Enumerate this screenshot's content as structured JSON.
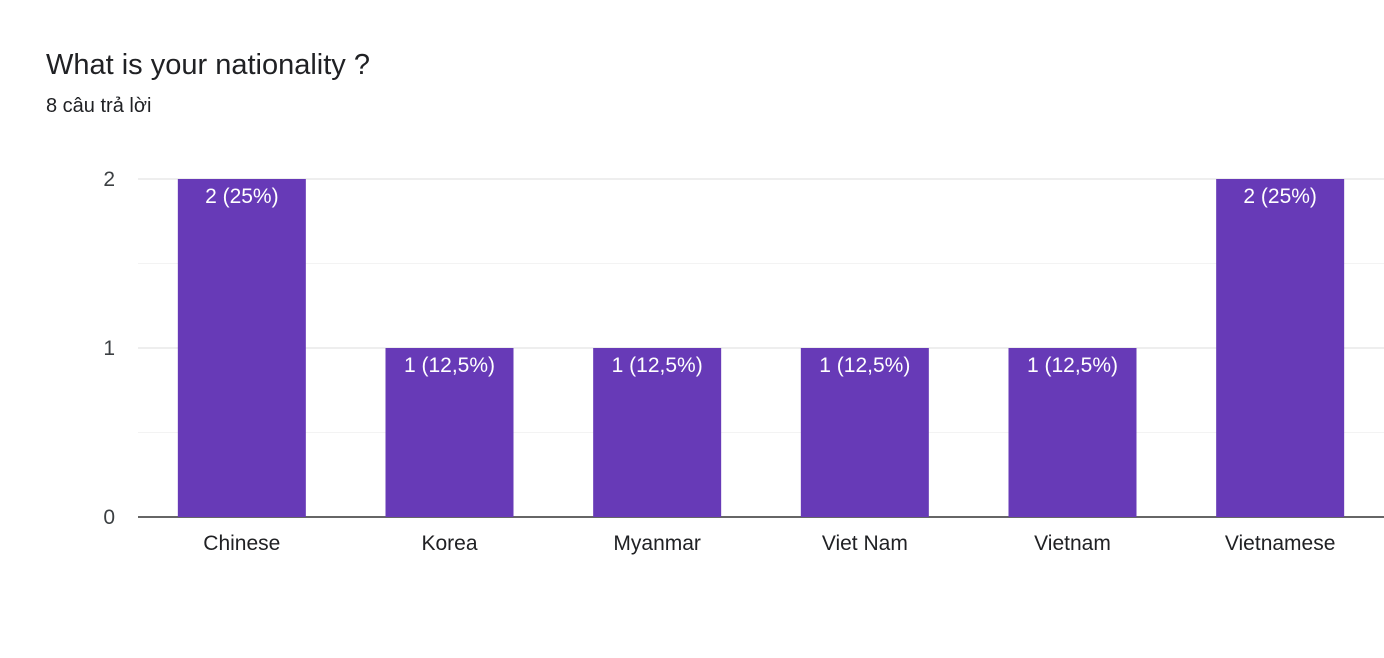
{
  "question": {
    "title": "What is your nationality ?",
    "response_count": "8 câu trả lời"
  },
  "colors": {
    "bar": "#673ab7",
    "gridline": "#e8e8e8",
    "minor_gridline": "#f3f3f3",
    "baseline": "#333333"
  },
  "chart_data": {
    "type": "bar",
    "title": "What is your nationality ?",
    "subtitle": "8 câu trả lời",
    "xlabel": "",
    "ylabel": "",
    "categories": [
      "Chinese",
      "Korea",
      "Myanmar",
      "Viet Nam",
      "Vietnam",
      "Vietnamese"
    ],
    "values": [
      2,
      1,
      1,
      1,
      1,
      2
    ],
    "data_labels": [
      "2 (25%)",
      "1 (12,5%)",
      "1 (12,5%)",
      "1 (12,5%)",
      "1 (12,5%)",
      "2 (25%)"
    ],
    "ylim": [
      0,
      2
    ],
    "yticks": [
      0,
      1,
      2
    ],
    "grid": true,
    "legend": "none"
  }
}
